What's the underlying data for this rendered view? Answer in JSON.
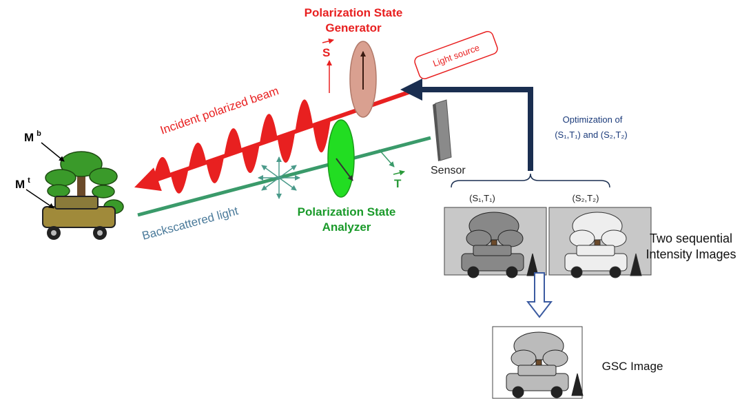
{
  "generator": {
    "lines": [
      "Polarization State",
      "Generator"
    ],
    "vector": "S"
  },
  "light_source": "Light source",
  "incident": "Incident polarized beam",
  "backscattered": "Backscattered light",
  "analyzer": {
    "lines": [
      "Polarization State",
      "Analyzer"
    ],
    "vector": "T"
  },
  "sensor": "Sensor",
  "optimization": {
    "lines": [
      "Optimization of",
      "(S₁,T₁) and (S₂,T₂)"
    ]
  },
  "image_labels": [
    "(S₁,T₁)",
    "(S₂,T₂)"
  ],
  "sequential": {
    "lines": [
      "Two sequential",
      "Intensity Images"
    ]
  },
  "gsc": "GSC Image",
  "markers": [
    {
      "base": "M",
      "sup": "b"
    },
    {
      "base": "M",
      "sup": "t"
    }
  ]
}
